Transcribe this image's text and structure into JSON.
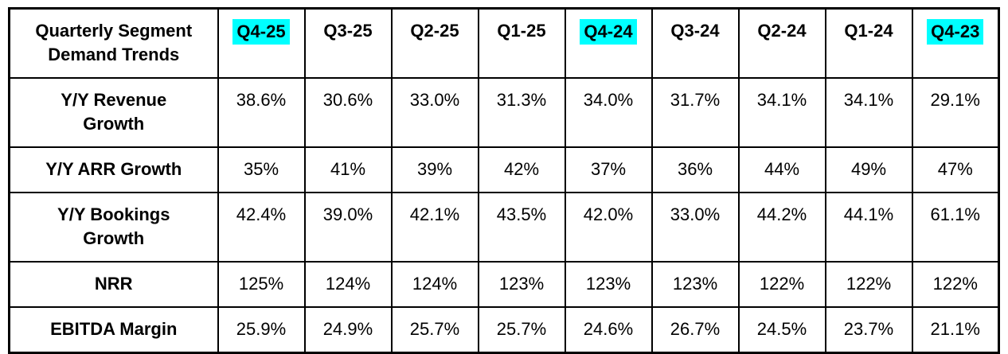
{
  "table": {
    "title": "Quarterly Segment\nDemand Trends",
    "highlight_color": "#00FFFF",
    "text_color": "#000000",
    "border_color": "#000000",
    "columns": [
      {
        "label": "Q4-25",
        "highlighted": true
      },
      {
        "label": "Q3-25",
        "highlighted": false
      },
      {
        "label": "Q2-25",
        "highlighted": false
      },
      {
        "label": "Q1-25",
        "highlighted": false
      },
      {
        "label": "Q4-24",
        "highlighted": true
      },
      {
        "label": "Q3-24",
        "highlighted": false
      },
      {
        "label": "Q2-24",
        "highlighted": false
      },
      {
        "label": "Q1-24",
        "highlighted": false
      },
      {
        "label": "Q4-23",
        "highlighted": true
      }
    ],
    "rows": [
      {
        "label": "Y/Y Revenue\nGrowth",
        "values": [
          "38.6%",
          "30.6%",
          "33.0%",
          "31.3%",
          "34.0%",
          "31.7%",
          "34.1%",
          "34.1%",
          "29.1%"
        ]
      },
      {
        "label": "Y/Y ARR Growth",
        "values": [
          "35%",
          "41%",
          "39%",
          "42%",
          "37%",
          "36%",
          "44%",
          "49%",
          "47%"
        ]
      },
      {
        "label": "Y/Y Bookings\nGrowth",
        "values": [
          "42.4%",
          "39.0%",
          "42.1%",
          "43.5%",
          "42.0%",
          "33.0%",
          "44.2%",
          "44.1%",
          "61.1%"
        ]
      },
      {
        "label": "NRR",
        "values": [
          "125%",
          "124%",
          "124%",
          "123%",
          "123%",
          "123%",
          "122%",
          "122%",
          "122%"
        ]
      },
      {
        "label": "EBITDA Margin",
        "values": [
          "25.9%",
          "24.9%",
          "25.7%",
          "25.7%",
          "24.6%",
          "26.7%",
          "24.5%",
          "23.7%",
          "21.1%"
        ]
      }
    ]
  },
  "chart_data": {
    "type": "table",
    "title": "Quarterly Segment Demand Trends",
    "categories": [
      "Q4-25",
      "Q3-25",
      "Q2-25",
      "Q1-25",
      "Q4-24",
      "Q3-24",
      "Q2-24",
      "Q1-24",
      "Q4-23"
    ],
    "highlighted_categories": [
      "Q4-25",
      "Q4-24",
      "Q4-23"
    ],
    "series": [
      {
        "name": "Y/Y Revenue Growth",
        "values": [
          38.6,
          30.6,
          33.0,
          31.3,
          34.0,
          31.7,
          34.1,
          34.1,
          29.1
        ],
        "unit": "%"
      },
      {
        "name": "Y/Y ARR Growth",
        "values": [
          35,
          41,
          39,
          42,
          37,
          36,
          44,
          49,
          47
        ],
        "unit": "%"
      },
      {
        "name": "Y/Y Bookings Growth",
        "values": [
          42.4,
          39.0,
          42.1,
          43.5,
          42.0,
          33.0,
          44.2,
          44.1,
          61.1
        ],
        "unit": "%"
      },
      {
        "name": "NRR",
        "values": [
          125,
          124,
          124,
          123,
          123,
          123,
          122,
          122,
          122
        ],
        "unit": "%"
      },
      {
        "name": "EBITDA Margin",
        "values": [
          25.9,
          24.9,
          25.7,
          25.7,
          24.6,
          26.7,
          24.5,
          23.7,
          21.1
        ],
        "unit": "%"
      }
    ]
  }
}
